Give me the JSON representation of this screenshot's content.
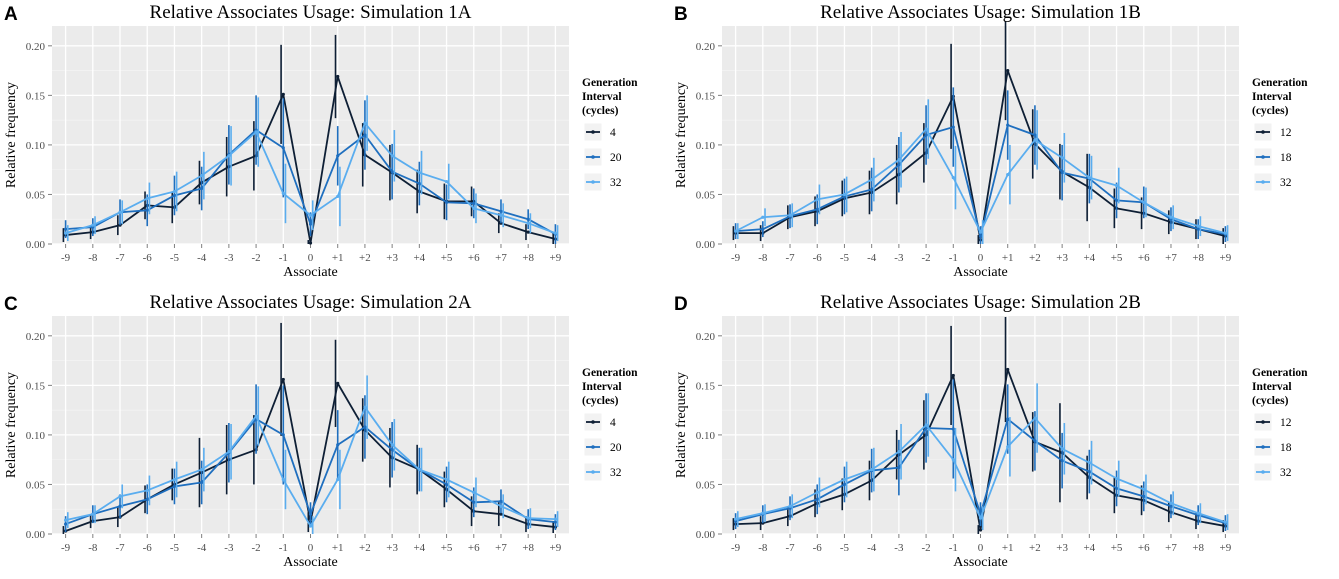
{
  "colors": {
    "panel_bg": "#ebebeb",
    "grid_major": "#ffffff",
    "grid_minor": "#f4f4f4",
    "series": [
      "#0e1f35",
      "#1f6fbf",
      "#5aadef"
    ]
  },
  "chart_data": [
    {
      "panel": "A",
      "type": "line",
      "title": "Relative Associates Usage: Simulation 1A",
      "xlabel": "Associate",
      "ylabel": "Relative frequency",
      "categories": [
        "-9",
        "-8",
        "-7",
        "-6",
        "-5",
        "-4",
        "-3",
        "-2",
        "-1",
        "0",
        "+1",
        "+2",
        "+3",
        "+4",
        "+5",
        "+6",
        "+7",
        "+8",
        "+9"
      ],
      "ylim": [
        0,
        0.22
      ],
      "yticks": [
        "0.00",
        "0.05",
        "0.10",
        "0.15",
        "0.20"
      ],
      "legend": {
        "title": [
          "Generation",
          "Interval",
          "(cycles)"
        ],
        "placement": "right"
      },
      "series": [
        {
          "name": "4",
          "values": [
            0.009,
            0.012,
            0.019,
            0.039,
            0.037,
            0.062,
            0.078,
            0.089,
            0.151,
            0.001,
            0.169,
            0.09,
            0.072,
            0.053,
            0.043,
            0.043,
            0.021,
            0.012,
            0.005
          ],
          "errors": [
            0.007,
            0.007,
            0.01,
            0.014,
            0.016,
            0.022,
            0.03,
            0.035,
            0.05,
            0.003,
            0.042,
            0.032,
            0.028,
            0.022,
            0.018,
            0.015,
            0.01,
            0.008,
            0.006
          ]
        },
        {
          "name": "20",
          "values": [
            0.015,
            0.017,
            0.032,
            0.034,
            0.049,
            0.056,
            0.09,
            0.115,
            0.097,
            0.02,
            0.089,
            0.11,
            0.073,
            0.061,
            0.042,
            0.041,
            0.033,
            0.025,
            0.01
          ],
          "errors": [
            0.009,
            0.009,
            0.013,
            0.016,
            0.02,
            0.022,
            0.03,
            0.035,
            0.05,
            0.012,
            0.03,
            0.035,
            0.028,
            0.022,
            0.018,
            0.015,
            0.012,
            0.01,
            0.01
          ]
        },
        {
          "name": "32",
          "values": [
            0.011,
            0.019,
            0.032,
            0.046,
            0.053,
            0.069,
            0.089,
            0.113,
            0.051,
            0.029,
            0.048,
            0.122,
            0.089,
            0.072,
            0.063,
            0.036,
            0.029,
            0.021,
            0.011
          ],
          "errors": [
            0.008,
            0.009,
            0.012,
            0.016,
            0.02,
            0.024,
            0.03,
            0.035,
            0.03,
            0.015,
            0.03,
            0.028,
            0.026,
            0.022,
            0.018,
            0.015,
            0.012,
            0.01,
            0.008
          ]
        }
      ]
    },
    {
      "panel": "B",
      "type": "line",
      "title": "Relative Associates Usage: Simulation 1B",
      "xlabel": "Associate",
      "ylabel": "Relative frequency",
      "categories": [
        "-9",
        "-8",
        "-7",
        "-6",
        "-5",
        "-4",
        "-3",
        "-2",
        "-1",
        "0",
        "+1",
        "+2",
        "+3",
        "+4",
        "+5",
        "+6",
        "+7",
        "+8",
        "+9"
      ],
      "ylim": [
        0,
        0.22
      ],
      "yticks": [
        "0.00",
        "0.05",
        "0.10",
        "0.15",
        "0.20"
      ],
      "legend": {
        "title": [
          "Generation",
          "Interval",
          "(cycles)"
        ],
        "placement": "right"
      },
      "series": [
        {
          "name": "12",
          "values": [
            0.011,
            0.011,
            0.027,
            0.033,
            0.046,
            0.052,
            0.07,
            0.092,
            0.149,
            0.004,
            0.175,
            0.101,
            0.073,
            0.057,
            0.036,
            0.031,
            0.022,
            0.015,
            0.008
          ],
          "errors": [
            0.007,
            0.008,
            0.012,
            0.015,
            0.018,
            0.022,
            0.03,
            0.03,
            0.053,
            0.005,
            0.05,
            0.035,
            0.028,
            0.034,
            0.02,
            0.016,
            0.012,
            0.01,
            0.008
          ]
        },
        {
          "name": "18",
          "values": [
            0.013,
            0.015,
            0.028,
            0.035,
            0.048,
            0.055,
            0.08,
            0.11,
            0.118,
            0.008,
            0.12,
            0.11,
            0.072,
            0.066,
            0.044,
            0.042,
            0.025,
            0.015,
            0.01
          ],
          "errors": [
            0.008,
            0.008,
            0.012,
            0.015,
            0.018,
            0.022,
            0.028,
            0.03,
            0.04,
            0.01,
            0.035,
            0.03,
            0.028,
            0.025,
            0.018,
            0.016,
            0.012,
            0.01,
            0.008
          ]
        },
        {
          "name": "32",
          "values": [
            0.013,
            0.027,
            0.029,
            0.045,
            0.05,
            0.065,
            0.085,
            0.116,
            0.067,
            0.012,
            0.07,
            0.105,
            0.087,
            0.067,
            0.059,
            0.042,
            0.027,
            0.018,
            0.011
          ],
          "errors": [
            0.008,
            0.009,
            0.012,
            0.015,
            0.018,
            0.022,
            0.028,
            0.03,
            0.032,
            0.012,
            0.03,
            0.03,
            0.025,
            0.022,
            0.018,
            0.015,
            0.012,
            0.01,
            0.008
          ]
        }
      ]
    },
    {
      "panel": "C",
      "type": "line",
      "title": "Relative Associates Usage: Simulation 2A",
      "xlabel": "Associate",
      "ylabel": "Relative frequency",
      "categories": [
        "-9",
        "-8",
        "-7",
        "-6",
        "-5",
        "-4",
        "-3",
        "-2",
        "-1",
        "0",
        "+1",
        "+2",
        "+3",
        "+4",
        "+5",
        "+6",
        "+7",
        "+8",
        "+9"
      ],
      "ylim": [
        0,
        0.22
      ],
      "yticks": [
        "0.00",
        "0.05",
        "0.10",
        "0.15",
        "0.20"
      ],
      "legend": {
        "title": [
          "Generation",
          "Interval",
          "(cycles)"
        ],
        "placement": "right"
      },
      "series": [
        {
          "name": "4",
          "values": [
            0.003,
            0.013,
            0.017,
            0.035,
            0.05,
            0.062,
            0.075,
            0.085,
            0.156,
            0.012,
            0.152,
            0.105,
            0.077,
            0.065,
            0.045,
            0.023,
            0.02,
            0.01,
            0.007
          ],
          "errors": [
            0.005,
            0.007,
            0.01,
            0.014,
            0.016,
            0.035,
            0.035,
            0.035,
            0.057,
            0.01,
            0.044,
            0.032,
            0.03,
            0.025,
            0.018,
            0.015,
            0.012,
            0.008,
            0.006
          ]
        },
        {
          "name": "20",
          "values": [
            0.01,
            0.02,
            0.028,
            0.035,
            0.048,
            0.052,
            0.082,
            0.116,
            0.1,
            0.02,
            0.09,
            0.108,
            0.085,
            0.065,
            0.05,
            0.032,
            0.033,
            0.015,
            0.012
          ],
          "errors": [
            0.008,
            0.009,
            0.012,
            0.015,
            0.018,
            0.022,
            0.03,
            0.035,
            0.05,
            0.012,
            0.035,
            0.032,
            0.028,
            0.022,
            0.018,
            0.015,
            0.012,
            0.01,
            0.008
          ]
        },
        {
          "name": "32",
          "values": [
            0.014,
            0.02,
            0.038,
            0.044,
            0.055,
            0.065,
            0.083,
            0.119,
            0.055,
            0.008,
            0.055,
            0.128,
            0.09,
            0.065,
            0.055,
            0.042,
            0.028,
            0.016,
            0.015
          ],
          "errors": [
            0.008,
            0.009,
            0.012,
            0.015,
            0.018,
            0.022,
            0.028,
            0.03,
            0.03,
            0.01,
            0.03,
            0.032,
            0.026,
            0.022,
            0.018,
            0.015,
            0.012,
            0.01,
            0.008
          ]
        }
      ]
    },
    {
      "panel": "D",
      "type": "line",
      "title": "Relative Associates Usage: Simulation 2B",
      "xlabel": "Associate",
      "ylabel": "Relative frequency",
      "categories": [
        "-9",
        "-8",
        "-7",
        "-6",
        "-5",
        "-4",
        "-3",
        "-2",
        "-1",
        "0",
        "+1",
        "+2",
        "+3",
        "+4",
        "+5",
        "+6",
        "+7",
        "+8",
        "+9"
      ],
      "ylim": [
        0,
        0.22
      ],
      "yticks": [
        "0.00",
        "0.05",
        "0.10",
        "0.15",
        "0.20"
      ],
      "legend": {
        "title": [
          "Generation",
          "Interval",
          "(cycles)"
        ],
        "placement": "right"
      },
      "series": [
        {
          "name": "12",
          "values": [
            0.01,
            0.011,
            0.018,
            0.031,
            0.04,
            0.054,
            0.08,
            0.1,
            0.16,
            0.004,
            0.166,
            0.093,
            0.082,
            0.057,
            0.039,
            0.034,
            0.022,
            0.013,
            0.008
          ],
          "errors": [
            0.006,
            0.007,
            0.01,
            0.014,
            0.016,
            0.02,
            0.025,
            0.035,
            0.05,
            0.005,
            0.053,
            0.03,
            0.05,
            0.022,
            0.018,
            0.015,
            0.01,
            0.008,
            0.006
          ]
        },
        {
          "name": "18",
          "values": [
            0.013,
            0.02,
            0.026,
            0.035,
            0.05,
            0.064,
            0.067,
            0.107,
            0.106,
            0.02,
            0.116,
            0.094,
            0.074,
            0.063,
            0.046,
            0.038,
            0.028,
            0.019,
            0.011
          ],
          "errors": [
            0.008,
            0.009,
            0.012,
            0.015,
            0.018,
            0.022,
            0.028,
            0.035,
            0.05,
            0.012,
            0.035,
            0.03,
            0.028,
            0.022,
            0.018,
            0.015,
            0.012,
            0.01,
            0.008
          ]
        },
        {
          "name": "32",
          "values": [
            0.015,
            0.021,
            0.028,
            0.042,
            0.055,
            0.065,
            0.083,
            0.11,
            0.075,
            0.016,
            0.088,
            0.117,
            0.086,
            0.072,
            0.056,
            0.045,
            0.031,
            0.021,
            0.012
          ],
          "errors": [
            0.008,
            0.009,
            0.012,
            0.015,
            0.018,
            0.022,
            0.028,
            0.032,
            0.032,
            0.012,
            0.03,
            0.035,
            0.026,
            0.022,
            0.018,
            0.015,
            0.012,
            0.01,
            0.008
          ]
        }
      ]
    }
  ]
}
